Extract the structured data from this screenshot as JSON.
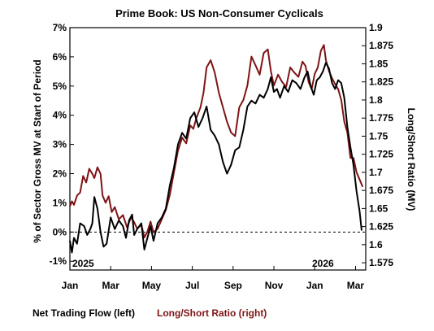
{
  "chart_data": {
    "type": "line",
    "title": "Prime Book: US Non-Consumer Cyclicals",
    "ylabel_left": "% of Sector Gross MV at Start of Period",
    "ylabel_right": "Long/Short Ratio (MV)",
    "x_ticks": [
      "Jan",
      "Mar",
      "May",
      "Jul",
      "Sep",
      "Nov",
      "Jan",
      "Mar"
    ],
    "year_labels": [
      "2025",
      "2026"
    ],
    "left_axis": {
      "ylim": [
        -1.3,
        7
      ],
      "ticks": [
        "-1%",
        "0%",
        "1%",
        "2%",
        "3%",
        "4%",
        "5%",
        "6%",
        "7%"
      ]
    },
    "right_axis": {
      "ylim": [
        1.565,
        1.9
      ],
      "ticks": [
        "1.575",
        "1.6",
        "1.625",
        "1.65",
        "1.675",
        "1.7",
        "1.725",
        "1.75",
        "1.775",
        "1.8",
        "1.825",
        "1.85",
        "1.875",
        "1.9"
      ]
    },
    "reference_line": {
      "axis": "left",
      "value": 0,
      "style": "dashed"
    },
    "legend_position": "bottom-left",
    "series": [
      {
        "name": "Net Trading Flow (left)",
        "axis": "left",
        "color": "#000000",
        "x_months": [
          0,
          0.1,
          0.2,
          0.35,
          0.5,
          0.7,
          0.85,
          1.0,
          1.1,
          1.2,
          1.35,
          1.5,
          1.65,
          1.8,
          2.0,
          2.2,
          2.4,
          2.6,
          2.75,
          2.9,
          3.05,
          3.15,
          3.3,
          3.5,
          3.65,
          3.8,
          3.95,
          4.1,
          4.3,
          4.5,
          4.7,
          4.9,
          5.1,
          5.3,
          5.5,
          5.7,
          5.9,
          6.1,
          6.3,
          6.5,
          6.7,
          6.9,
          7.1,
          7.3,
          7.5,
          7.7,
          7.9,
          8.1,
          8.3,
          8.5,
          8.7,
          8.9,
          9.1,
          9.3,
          9.5,
          9.7,
          9.85,
          10.0,
          10.15,
          10.3,
          10.5,
          10.7,
          10.9,
          11.1,
          11.3,
          11.5,
          11.65,
          11.8,
          11.95,
          12.1,
          12.25,
          12.4,
          12.55,
          12.7,
          12.85,
          13.0,
          13.15,
          13.3,
          13.45,
          13.6,
          13.75,
          13.9,
          14.05,
          14.2,
          14.3
        ],
        "values": [
          -0.3,
          -0.7,
          -0.2,
          -0.4,
          0.3,
          0.2,
          -0.1,
          0.1,
          0.3,
          1.2,
          0.8,
          0.0,
          -0.5,
          -0.4,
          0.5,
          0.1,
          0.4,
          0.2,
          -0.2,
          0.4,
          0.6,
          -0.1,
          0.1,
          0.3,
          -0.6,
          -0.2,
          0.2,
          -0.3,
          0.3,
          0.5,
          0.8,
          1.6,
          2.2,
          3.0,
          3.4,
          3.2,
          3.9,
          4.1,
          3.6,
          3.9,
          4.3,
          3.5,
          3.3,
          3.0,
          2.4,
          2.0,
          2.3,
          2.8,
          2.9,
          3.5,
          4.3,
          4.5,
          4.4,
          4.7,
          4.6,
          4.9,
          5.3,
          4.8,
          4.9,
          4.6,
          5.0,
          4.8,
          5.2,
          5.1,
          4.9,
          5.3,
          5.5,
          5.0,
          4.7,
          5.2,
          5.3,
          5.5,
          5.8,
          5.6,
          5.1,
          4.9,
          5.2,
          5.1,
          4.6,
          3.6,
          2.9,
          2.3,
          1.4,
          0.7,
          0.05
        ]
      },
      {
        "name": "Long/Short Ratio (right)",
        "axis": "right",
        "color": "#7f1416",
        "x_months": [
          0,
          0.1,
          0.2,
          0.35,
          0.5,
          0.65,
          0.8,
          0.95,
          1.1,
          1.2,
          1.35,
          1.5,
          1.6,
          1.75,
          1.9,
          2.05,
          2.2,
          2.4,
          2.6,
          2.8,
          3.0,
          3.15,
          3.3,
          3.5,
          3.65,
          3.8,
          3.95,
          4.1,
          4.3,
          4.5,
          4.7,
          4.9,
          5.1,
          5.3,
          5.5,
          5.7,
          5.9,
          6.05,
          6.2,
          6.4,
          6.55,
          6.7,
          6.9,
          7.1,
          7.3,
          7.5,
          7.7,
          7.9,
          8.1,
          8.3,
          8.5,
          8.7,
          8.9,
          9.1,
          9.3,
          9.5,
          9.7,
          9.85,
          10.0,
          10.2,
          10.4,
          10.6,
          10.8,
          11.0,
          11.2,
          11.4,
          11.55,
          11.7,
          11.85,
          12.0,
          12.15,
          12.3,
          12.45,
          12.55,
          12.7,
          12.85,
          13.0,
          13.15,
          13.3,
          13.45,
          13.6,
          13.75,
          13.9,
          14.05,
          14.2,
          14.35
        ],
        "values": [
          1.653,
          1.66,
          1.655,
          1.668,
          1.672,
          1.695,
          1.686,
          1.705,
          1.698,
          1.692,
          1.707,
          1.698,
          1.668,
          1.658,
          1.667,
          1.645,
          1.652,
          1.635,
          1.641,
          1.624,
          1.638,
          1.631,
          1.622,
          1.628,
          1.61,
          1.618,
          1.632,
          1.617,
          1.622,
          1.635,
          1.648,
          1.669,
          1.7,
          1.73,
          1.748,
          1.74,
          1.765,
          1.76,
          1.775,
          1.79,
          1.81,
          1.845,
          1.855,
          1.838,
          1.81,
          1.79,
          1.77,
          1.755,
          1.75,
          1.79,
          1.8,
          1.82,
          1.86,
          1.848,
          1.835,
          1.865,
          1.87,
          1.84,
          1.82,
          1.835,
          1.825,
          1.818,
          1.845,
          1.838,
          1.832,
          1.853,
          1.847,
          1.825,
          1.815,
          1.836,
          1.845,
          1.868,
          1.876,
          1.855,
          1.84,
          1.83,
          1.822,
          1.815,
          1.8,
          1.77,
          1.755,
          1.72,
          1.72,
          1.7,
          1.69,
          1.68
        ]
      }
    ]
  }
}
